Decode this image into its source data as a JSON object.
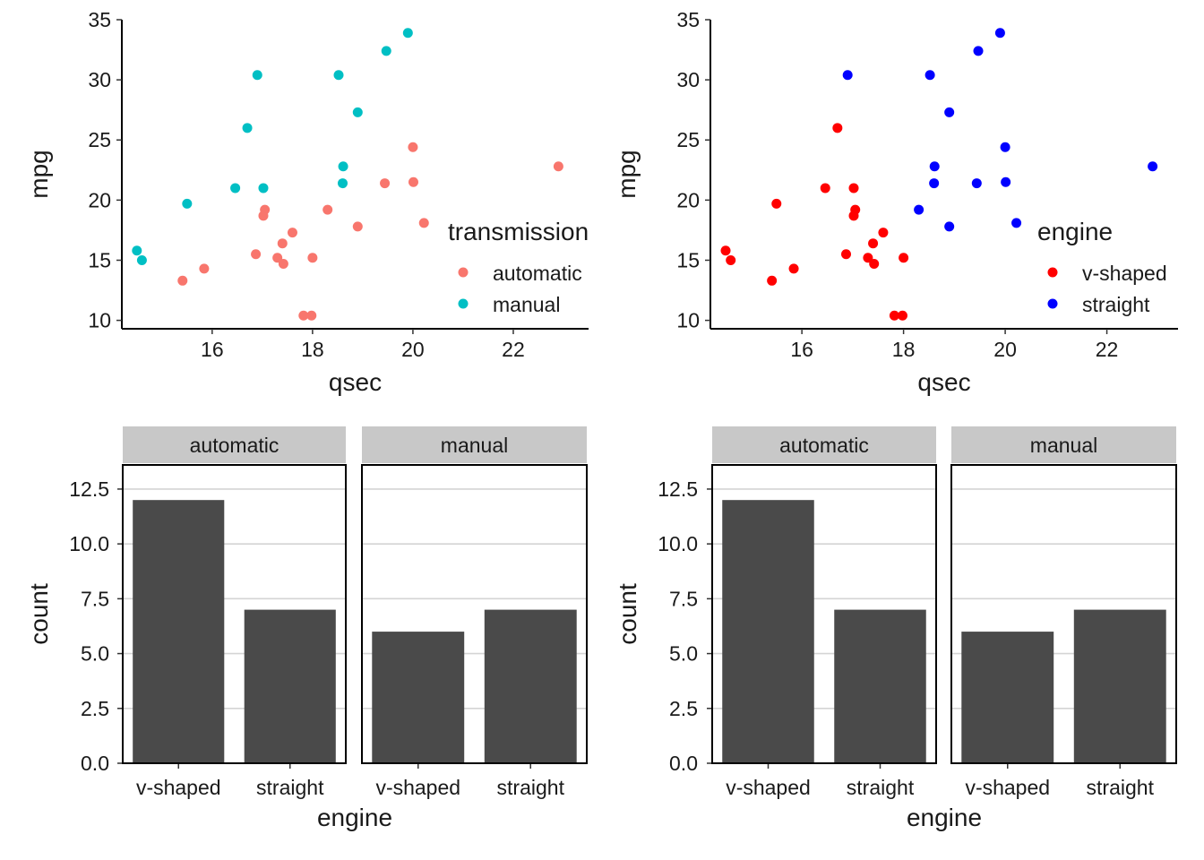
{
  "chart_data": [
    {
      "type": "scatter",
      "xlabel": "qsec",
      "ylabel": "mpg",
      "xlim": [
        14.2,
        23.3
      ],
      "ylim": [
        9.3,
        35
      ],
      "x_ticks": [
        16,
        18,
        20,
        22
      ],
      "y_ticks": [
        10,
        15,
        20,
        25,
        30,
        35
      ],
      "grid": false,
      "legend": {
        "title": "transmission",
        "position": "inside-bottom-right",
        "entries": [
          {
            "label": "automatic",
            "color": "#F8766D"
          },
          {
            "label": "manual",
            "color": "#00BFC4"
          }
        ]
      },
      "series": [
        {
          "name": "automatic",
          "color": "#F8766D",
          "points": [
            [
              19.44,
              21.4
            ],
            [
              17.02,
              18.7
            ],
            [
              20.22,
              18.1
            ],
            [
              15.84,
              14.3
            ],
            [
              20.0,
              24.4
            ],
            [
              22.9,
              22.8
            ],
            [
              18.3,
              19.2
            ],
            [
              18.9,
              17.8
            ],
            [
              17.4,
              16.4
            ],
            [
              17.6,
              17.3
            ],
            [
              18.0,
              15.2
            ],
            [
              17.98,
              10.4
            ],
            [
              17.82,
              10.4
            ],
            [
              17.42,
              14.7
            ],
            [
              20.01,
              21.5
            ],
            [
              16.87,
              15.5
            ],
            [
              17.3,
              15.2
            ],
            [
              15.41,
              13.3
            ],
            [
              17.05,
              19.2
            ]
          ]
        },
        {
          "name": "manual",
          "color": "#00BFC4",
          "points": [
            [
              16.46,
              21.0
            ],
            [
              17.02,
              21.0
            ],
            [
              18.61,
              22.8
            ],
            [
              19.47,
              32.4
            ],
            [
              18.52,
              30.4
            ],
            [
              19.9,
              33.9
            ],
            [
              16.7,
              26.0
            ],
            [
              16.9,
              30.4
            ],
            [
              14.5,
              15.8
            ],
            [
              15.5,
              19.7
            ],
            [
              14.6,
              15.0
            ],
            [
              18.6,
              21.4
            ],
            [
              18.9,
              27.3
            ]
          ]
        }
      ]
    },
    {
      "type": "scatter",
      "xlabel": "qsec",
      "ylabel": "mpg",
      "xlim": [
        14.2,
        23.3
      ],
      "ylim": [
        9.3,
        35
      ],
      "x_ticks": [
        16,
        18,
        20,
        22
      ],
      "y_ticks": [
        10,
        15,
        20,
        25,
        30,
        35
      ],
      "grid": false,
      "legend": {
        "title": "engine",
        "position": "inside-bottom-right",
        "entries": [
          {
            "label": "v-shaped",
            "color": "#FF0000"
          },
          {
            "label": "straight",
            "color": "#0000FF"
          }
        ]
      },
      "series": [
        {
          "name": "v-shaped",
          "color": "#FF0000",
          "points": [
            [
              16.46,
              21.0
            ],
            [
              17.02,
              21.0
            ],
            [
              17.02,
              18.7
            ],
            [
              15.84,
              14.3
            ],
            [
              17.4,
              16.4
            ],
            [
              17.6,
              17.3
            ],
            [
              18.0,
              15.2
            ],
            [
              17.98,
              10.4
            ],
            [
              17.82,
              10.4
            ],
            [
              17.42,
              14.7
            ],
            [
              16.87,
              15.5
            ],
            [
              17.3,
              15.2
            ],
            [
              15.41,
              13.3
            ],
            [
              17.05,
              19.2
            ],
            [
              16.7,
              26.0
            ],
            [
              14.5,
              15.8
            ],
            [
              15.5,
              19.7
            ],
            [
              14.6,
              15.0
            ]
          ]
        },
        {
          "name": "straight",
          "color": "#0000FF",
          "points": [
            [
              18.61,
              22.8
            ],
            [
              19.44,
              21.4
            ],
            [
              20.22,
              18.1
            ],
            [
              20.0,
              24.4
            ],
            [
              22.9,
              22.8
            ],
            [
              18.3,
              19.2
            ],
            [
              18.9,
              17.8
            ],
            [
              19.47,
              32.4
            ],
            [
              18.52,
              30.4
            ],
            [
              19.9,
              33.9
            ],
            [
              20.01,
              21.5
            ],
            [
              16.9,
              30.4
            ],
            [
              18.6,
              21.4
            ],
            [
              18.9,
              27.3
            ]
          ]
        }
      ]
    },
    {
      "type": "bar",
      "xlabel": "engine",
      "ylabel": "count",
      "ylim": [
        0,
        13.6
      ],
      "y_ticks": [
        "0.0",
        "2.5",
        "5.0",
        "7.5",
        "10.0",
        "12.5"
      ],
      "grid": true,
      "categories": [
        "v-shaped",
        "straight"
      ],
      "facets": [
        {
          "label": "automatic",
          "values": [
            12,
            7
          ]
        },
        {
          "label": "manual",
          "values": [
            6,
            7
          ]
        }
      ]
    },
    {
      "type": "bar",
      "xlabel": "engine",
      "ylabel": "count",
      "ylim": [
        0,
        13.6
      ],
      "y_ticks": [
        "0.0",
        "2.5",
        "5.0",
        "7.5",
        "10.0",
        "12.5"
      ],
      "grid": true,
      "categories": [
        "v-shaped",
        "straight"
      ],
      "facets": [
        {
          "label": "automatic",
          "values": [
            12,
            7
          ]
        },
        {
          "label": "manual",
          "values": [
            6,
            7
          ]
        }
      ]
    }
  ]
}
